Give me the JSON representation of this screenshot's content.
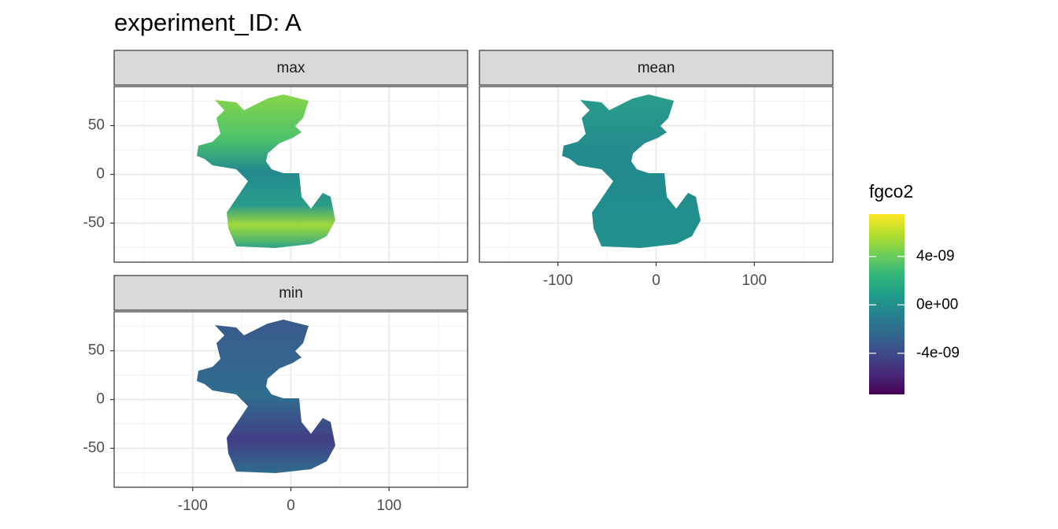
{
  "chart_data": {
    "type": "raster-map",
    "title": "experiment_ID: A",
    "panels": [
      "max",
      "mean",
      "min"
    ],
    "xlim": [
      -180,
      180
    ],
    "ylim": [
      -90,
      90
    ],
    "xticks": [
      -100,
      0,
      100
    ],
    "yticks": [
      -50,
      0,
      50
    ],
    "grid": true,
    "legend": {
      "title": "fgco2",
      "lim": [
        -7.4e-09,
        7.5e-09
      ],
      "ticks": [
        {
          "value": 4e-09,
          "label": "4e-09"
        },
        {
          "value": 0,
          "label": "0e+00"
        },
        {
          "value": -4e-09,
          "label": "-4e-09"
        }
      ],
      "colors": [
        "#440154",
        "#482878",
        "#3e4989",
        "#31688e",
        "#26828e",
        "#1f9e89",
        "#35b779",
        "#6ece58",
        "#b5de2b",
        "#fde725"
      ]
    }
  }
}
